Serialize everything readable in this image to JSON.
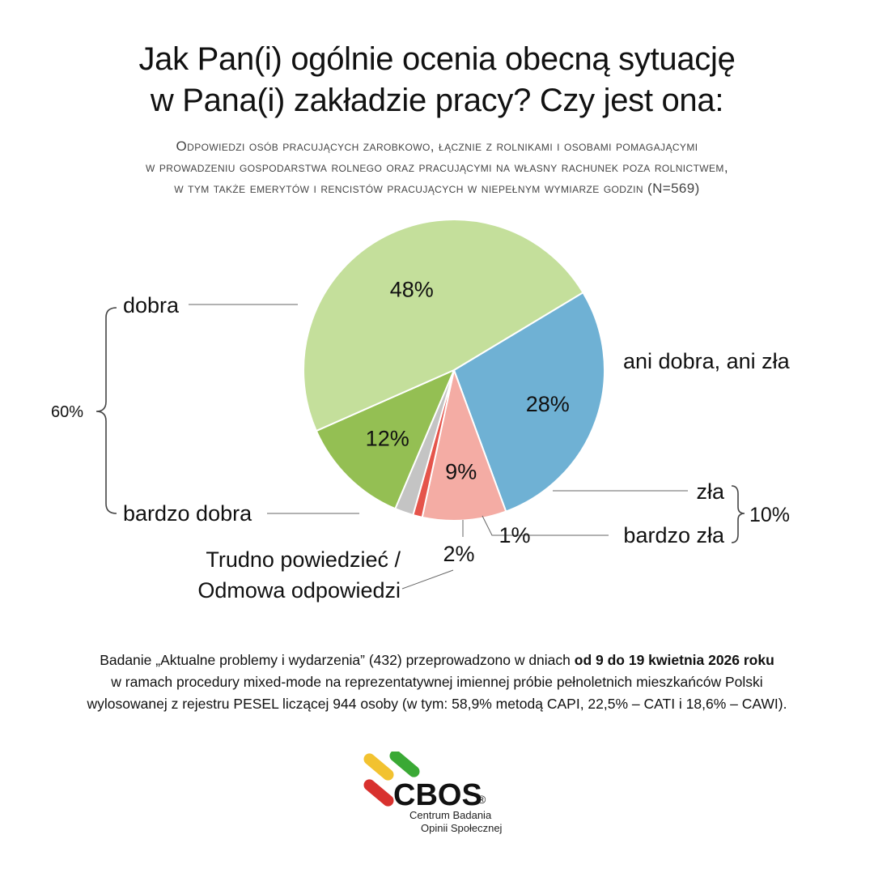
{
  "title": {
    "line1": "Jak Pan(i) ogólnie ocenia obecną sytuację",
    "line2": "w Pana(i) zakładzie pracy? Czy jest ona:"
  },
  "subtitle": {
    "line1": "Odpowiedzi osób pracujących zarobkowo, łącznie z rolnikami i osobami pomagającymi",
    "line2": "w prowadzeniu gospodarstwa rolnego oraz pracującymi na własny rachunek poza rolnictwem,",
    "line3": "w tym także emerytów i rencistów pracujących w niepełnym wymiarze godzin (N=569)"
  },
  "chart_data": {
    "type": "pie",
    "unit": "%",
    "slices": [
      {
        "label": "ani dobra, ani zła",
        "value": 28,
        "value_label": "28%",
        "color": "#6fb1d4"
      },
      {
        "label": "zła",
        "value": 9,
        "value_label": "9%",
        "color": "#f4aca4"
      },
      {
        "label": "bardzo zła",
        "value": 1,
        "value_label": "1%",
        "color": "#e5544b"
      },
      {
        "label": "Trudno powiedzieć / Odmowa odpowiedzi",
        "value": 2,
        "value_label": "2%",
        "color": "#c4c4c4"
      },
      {
        "label": "bardzo dobra",
        "value": 12,
        "value_label": "12%",
        "color": "#94bf53"
      },
      {
        "label": "dobra",
        "value": 48,
        "value_label": "48%",
        "color": "#c4df9b"
      }
    ],
    "groups": [
      {
        "label": "60%",
        "members": [
          "dobra",
          "bardzo dobra"
        ]
      },
      {
        "label": "10%",
        "members": [
          "zła",
          "bardzo zła"
        ]
      }
    ],
    "label_lines": {
      "dont_know_line1": "Trudno powiedzieć /",
      "dont_know_line2": "Odmowa odpowiedzi"
    }
  },
  "footnote": {
    "line1_pre": "Badanie „Aktualne problemy i wydarzenia” (432) przeprowadzono w dniach ",
    "line1_bold": "od 9 do 19 kwietnia 2026 roku",
    "line2": "w ramach procedury mixed-mode na reprezentatywnej imiennej próbie pełnoletnich mieszkańców Polski",
    "line3": "wylosowanej z rejestru PESEL liczącej 944 osoby (w tym: 58,9% metodą CAPI, 22,5% – CATI i 18,6% – CAWI)."
  },
  "logo": {
    "name": "CBOS",
    "registered": "®",
    "line1": "Centrum Badania",
    "line2": "Opinii Społecznej",
    "colors": {
      "yellow": "#f2c230",
      "green": "#3aa935",
      "red": "#d8312e"
    }
  }
}
